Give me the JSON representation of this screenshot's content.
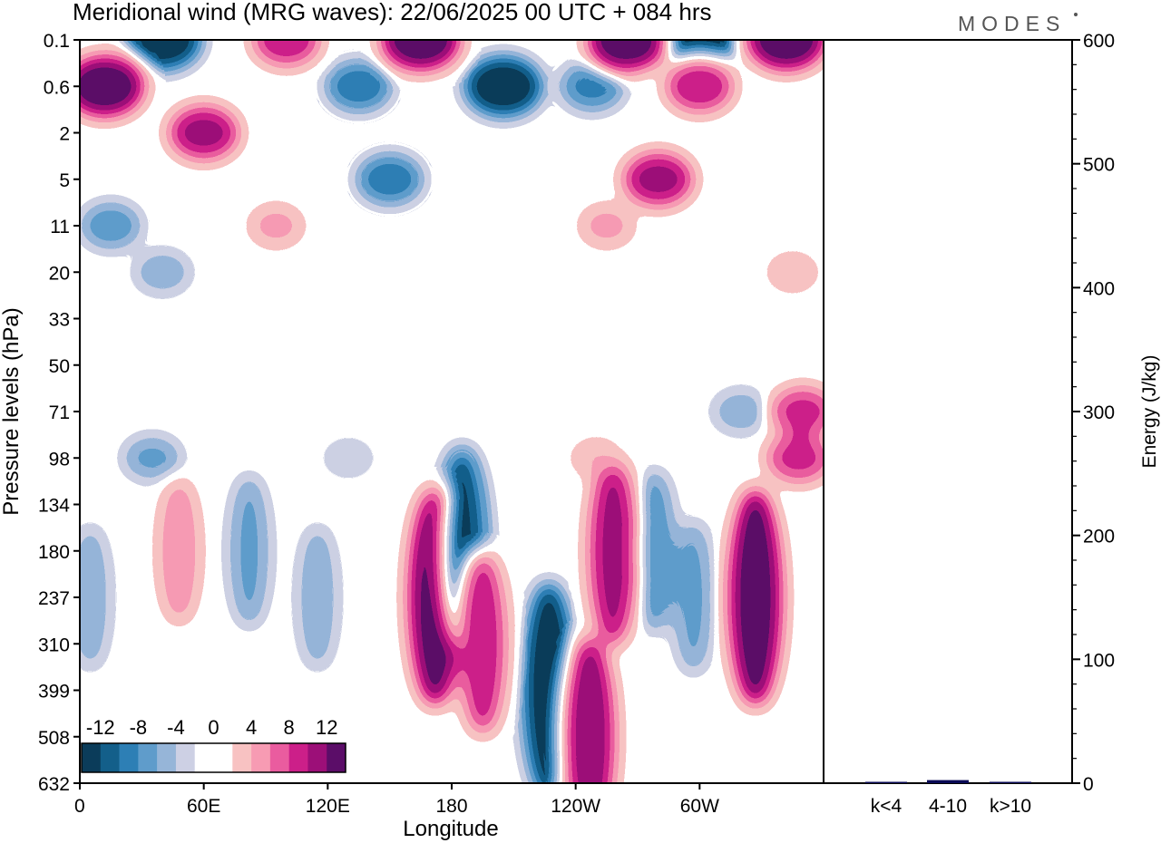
{
  "title": "Meridional wind (MRG waves):  22/06/2025  00 UTC  + 084 hrs",
  "logo": "MODES",
  "colors": {
    "neg": [
      "#0b3c5a",
      "#135f8a",
      "#2d7fb5",
      "#5f9ccb",
      "#96b5d8",
      "#cdd0e4"
    ],
    "pos": [
      "#f8c2c2",
      "#f79bb3",
      "#ea5c9f",
      "#cc1f89",
      "#9c0f78",
      "#5b0d68"
    ],
    "axis": "#000000",
    "bar": "#0a0a55"
  },
  "chart_data": [
    {
      "type": "heatmap",
      "title": "Meridional wind (MRG waves):  22/06/2025  00 UTC  + 084 hrs",
      "xlabel": "Longitude",
      "ylabel": "Pressure levels (hPa)",
      "x_ticks": [
        "0",
        "60E",
        "120E",
        "180",
        "120W",
        "60W"
      ],
      "y_ticks": [
        "0.1",
        "0.6",
        "2",
        "5",
        "11",
        "20",
        "33",
        "50",
        "71",
        "98",
        "134",
        "180",
        "237",
        "310",
        "399",
        "508",
        "632"
      ],
      "levels": [
        -12,
        -10,
        -8,
        -6,
        -4,
        -2,
        0,
        2,
        4,
        6,
        8,
        10,
        12
      ],
      "colorbar_labels": [
        "-12",
        "-8",
        "-4",
        "0",
        "4",
        "8",
        "12"
      ],
      "features": [
        {
          "lon": 172,
          "level": "237",
          "value": 14
        },
        {
          "lon": 185,
          "level": "180",
          "value": -12
        },
        {
          "lon": 195,
          "level": "310",
          "value": 9
        },
        {
          "lon": 227,
          "level": "399",
          "value": -13
        },
        {
          "lon": 247,
          "level": "508",
          "value": 11
        },
        {
          "lon": 258,
          "level": "180",
          "value": 10
        },
        {
          "lon": 278,
          "level": "180",
          "value": -7
        },
        {
          "lon": 297,
          "level": "237",
          "value": -6
        },
        {
          "lon": 327,
          "level": "237",
          "value": 13
        },
        {
          "lon": 348,
          "level": "98",
          "value": 8
        },
        {
          "lon": 5,
          "level": "237",
          "value": -5
        },
        {
          "lon": 48,
          "level": "180",
          "value": 5
        },
        {
          "lon": 82,
          "level": "180",
          "value": -6
        },
        {
          "lon": 115,
          "level": "237",
          "value": -5
        },
        {
          "lon": 35,
          "level": "98",
          "value": -6
        },
        {
          "lon": 130,
          "level": "98",
          "value": -3
        },
        {
          "lon": 250,
          "level": "98",
          "value": 3
        },
        {
          "lon": 320,
          "level": "71",
          "value": -5
        },
        {
          "lon": 350,
          "level": "71",
          "value": 8
        },
        {
          "lon": 40,
          "level": "0.1",
          "value": -14
        },
        {
          "lon": 12,
          "level": "0.6",
          "value": 13
        },
        {
          "lon": 60,
          "level": "2",
          "value": 10
        },
        {
          "lon": 100,
          "level": "0.1",
          "value": 9
        },
        {
          "lon": 135,
          "level": "0.6",
          "value": -9
        },
        {
          "lon": 165,
          "level": "0.1",
          "value": 13
        },
        {
          "lon": 205,
          "level": "0.6",
          "value": -15
        },
        {
          "lon": 150,
          "level": "5",
          "value": -9
        },
        {
          "lon": 248,
          "level": "0.6",
          "value": -8
        },
        {
          "lon": 265,
          "level": "0.1",
          "value": 13
        },
        {
          "lon": 300,
          "level": "0.1",
          "value": -14
        },
        {
          "lon": 342,
          "level": "0.1",
          "value": 16
        },
        {
          "lon": 280,
          "level": "5",
          "value": 10
        },
        {
          "lon": 300,
          "level": "0.6",
          "value": 9
        },
        {
          "lon": 15,
          "level": "11",
          "value": -7
        },
        {
          "lon": 40,
          "level": "20",
          "value": -5
        },
        {
          "lon": 95,
          "level": "11",
          "value": 4
        },
        {
          "lon": 255,
          "level": "11",
          "value": 4
        },
        {
          "lon": 345,
          "level": "20",
          "value": 3
        }
      ]
    },
    {
      "type": "bar",
      "ylabel": "Energy (J/kg)",
      "categories": [
        "k<4",
        "4-10",
        "k>10"
      ],
      "values": [
        0.8,
        2.5,
        0.5
      ],
      "ylim": [
        0,
        600
      ],
      "y_ticks": [
        "0",
        "100",
        "200",
        "300",
        "400",
        "500",
        "600"
      ]
    }
  ]
}
